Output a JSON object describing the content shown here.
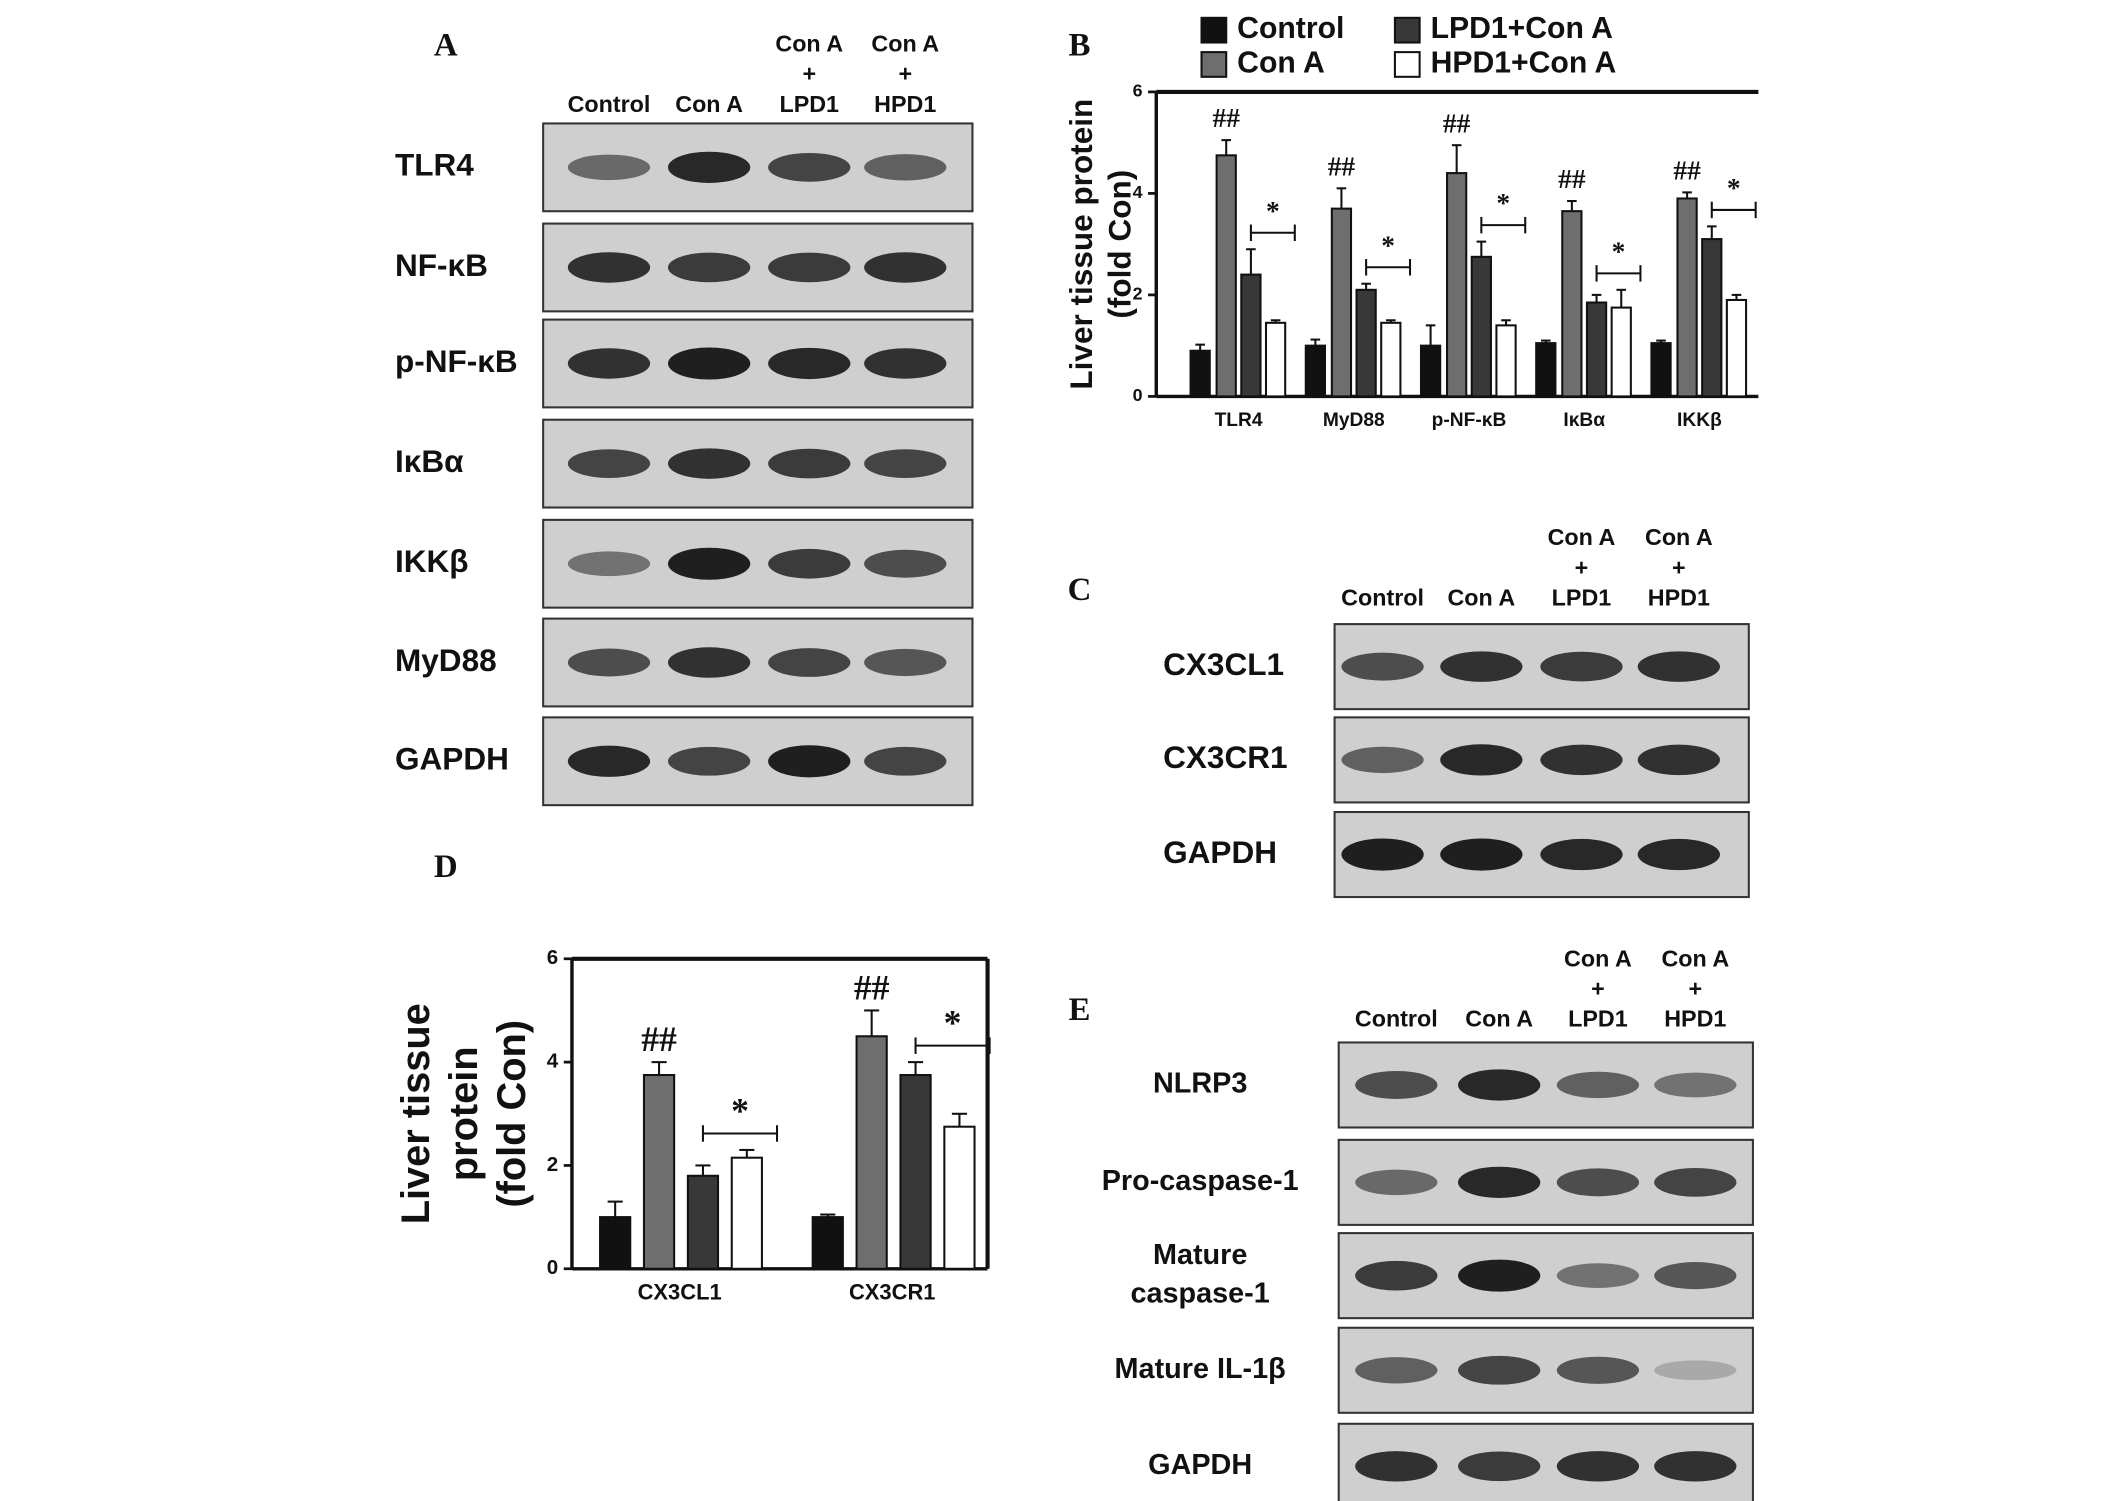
{
  "panel_labels": [
    "A",
    "B",
    "C",
    "D",
    "E"
  ],
  "blot_a": {
    "lanes": [
      [
        "Control"
      ],
      [
        "Con A"
      ],
      [
        "Con A",
        "+",
        "LPD1"
      ],
      [
        "Con A",
        "+",
        "HPD1"
      ]
    ],
    "rows": [
      [
        "TLR4"
      ],
      [
        "NF-κB"
      ],
      [
        "p-NF-κB"
      ],
      [
        "IκBα"
      ],
      [
        "IKKβ"
      ],
      [
        "MyD88"
      ],
      [
        "GAPDH"
      ]
    ]
  },
  "blot_c": {
    "lanes": [
      [
        "Control"
      ],
      [
        "Con A"
      ],
      [
        "Con A",
        "+",
        "LPD1"
      ],
      [
        "Con A",
        "+",
        "HPD1"
      ]
    ],
    "rows": [
      [
        "CX3CL1"
      ],
      [
        "CX3CR1"
      ],
      [
        "GAPDH"
      ]
    ]
  },
  "blot_e": {
    "lanes": [
      [
        "Control"
      ],
      [
        "Con A"
      ],
      [
        "Con A",
        "+",
        "LPD1"
      ],
      [
        "Con A",
        "+",
        "HPD1"
      ]
    ],
    "rows": [
      [
        "NLRP3"
      ],
      [
        "Pro-caspase-1"
      ],
      [
        "Mature",
        "caspase-1"
      ],
      [
        "Mature IL-1β"
      ],
      [
        "GAPDH"
      ]
    ]
  },
  "chart_data": [
    {
      "type": "bar",
      "ylabel": [
        "Liver tissue protein",
        "(fold Con)"
      ],
      "categories": [
        "TLR4",
        "MyD88",
        "p-NF-κB",
        "IκBα",
        "IKKβ"
      ],
      "series": [
        {
          "name": "Control",
          "color": "#111111",
          "values": [
            0.9,
            1.0,
            1.0,
            1.05,
            1.05
          ],
          "errors": [
            0.12,
            0.12,
            0.4,
            0.05,
            0.05
          ]
        },
        {
          "name": "Con A",
          "color": "#6e6e6e",
          "values": [
            4.75,
            3.7,
            4.4,
            3.65,
            3.9
          ],
          "errors": [
            0.3,
            0.4,
            0.55,
            0.2,
            0.12
          ]
        },
        {
          "name": "LPD1+Con A",
          "color": "#383838",
          "values": [
            2.4,
            2.1,
            2.75,
            1.85,
            3.1
          ],
          "errors": [
            0.5,
            0.12,
            0.3,
            0.15,
            0.25
          ]
        },
        {
          "name": "HPD1+Con A",
          "color": "#ffffff",
          "values": [
            1.45,
            1.45,
            1.4,
            1.75,
            1.9
          ],
          "errors": [
            0.05,
            0.05,
            0.1,
            0.35,
            0.1
          ]
        }
      ],
      "hash_marks": [
        "##",
        "##",
        "##",
        "##",
        "##"
      ],
      "star_marks": [
        "*",
        "*",
        "*",
        "*",
        "*"
      ],
      "ylim": [
        0,
        6
      ],
      "yticks": [
        0,
        2,
        4,
        6
      ],
      "box": false
    },
    {
      "type": "bar",
      "ylabel": [
        "Liver tissue",
        "protein",
        "(fold Con)"
      ],
      "categories": [
        "CX3CL1",
        "CX3CR1"
      ],
      "series": [
        {
          "color": "#111111",
          "values": [
            1.0,
            1.0
          ],
          "errors": [
            0.3,
            0.05
          ]
        },
        {
          "color": "#6e6e6e",
          "values": [
            3.75,
            4.5
          ],
          "errors": [
            0.25,
            0.5
          ]
        },
        {
          "color": "#383838",
          "values": [
            1.8,
            3.75
          ],
          "errors": [
            0.2,
            0.25
          ]
        },
        {
          "color": "#ffffff",
          "values": [
            2.15,
            2.75
          ],
          "errors": [
            0.15,
            0.25
          ]
        }
      ],
      "hash_marks": [
        "##",
        "##"
      ],
      "star_marks": [
        "*",
        "*"
      ],
      "ylim": [
        0,
        6
      ],
      "yticks": [
        0,
        2,
        4,
        6
      ],
      "box": true
    }
  ]
}
